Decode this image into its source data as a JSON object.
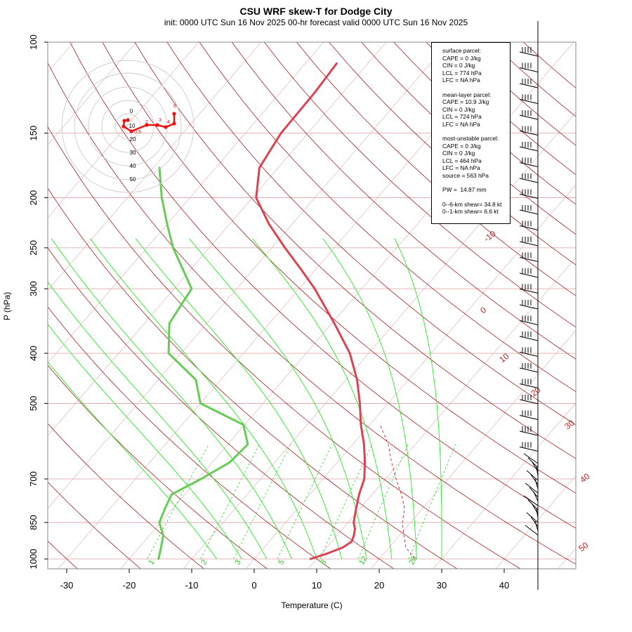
{
  "chart_data": {
    "type": "line",
    "title": "CSU WRF skew-T for Dodge City",
    "subtitle": "init: 0000 UTC Sun 16 Nov 2025     00-hr forecast valid 0000 UTC Sun 16 Nov 2025",
    "xlabel": "Temperature (C)",
    "ylabel": "P (hPa)",
    "x_ticks": [
      -30,
      -20,
      -10,
      0,
      10,
      20,
      30,
      40
    ],
    "p_ticks": [
      100,
      150,
      200,
      250,
      300,
      400,
      500,
      700,
      850,
      1000
    ],
    "isotherm_labels": [
      "-10",
      "0",
      "10",
      "20",
      "30",
      "40",
      "50"
    ],
    "mixing_ratio_labels": [
      "1",
      "2",
      "3",
      "5",
      "8",
      "12",
      "20"
    ],
    "series": [
      {
        "name": "temperature",
        "color": "#d94452",
        "points": [
          [
            1000,
            9
          ],
          [
            975,
            11
          ],
          [
            950,
            12.6
          ],
          [
            925,
            13.2
          ],
          [
            900,
            12.7
          ],
          [
            875,
            12
          ],
          [
            850,
            10.9
          ],
          [
            800,
            9.4
          ],
          [
            750,
            7.9
          ],
          [
            700,
            6.6
          ],
          [
            650,
            4.4
          ],
          [
            600,
            1.8
          ],
          [
            550,
            -1.4
          ],
          [
            500,
            -4.5
          ],
          [
            450,
            -8.2
          ],
          [
            400,
            -13
          ],
          [
            350,
            -19.6
          ],
          [
            300,
            -27.5
          ],
          [
            275,
            -32.4
          ],
          [
            250,
            -37.9
          ],
          [
            225,
            -43.7
          ],
          [
            200,
            -49.4
          ],
          [
            175,
            -53
          ],
          [
            150,
            -54.3
          ],
          [
            125,
            -54.5
          ],
          [
            110,
            -55
          ]
        ]
      },
      {
        "name": "dewpoint",
        "color": "#66cc55",
        "points": [
          [
            1000,
            -15.3
          ],
          [
            950,
            -16.5
          ],
          [
            900,
            -17.8
          ],
          [
            850,
            -20.2
          ],
          [
            800,
            -21.2
          ],
          [
            750,
            -22.1
          ],
          [
            700,
            -19.5
          ],
          [
            650,
            -17.2
          ],
          [
            600,
            -16.8
          ],
          [
            550,
            -20.2
          ],
          [
            500,
            -30
          ],
          [
            450,
            -34
          ],
          [
            400,
            -42
          ],
          [
            350,
            -46
          ],
          [
            300,
            -47.2
          ],
          [
            275,
            -51.3
          ],
          [
            250,
            -55.8
          ],
          [
            225,
            -60
          ],
          [
            200,
            -64.5
          ],
          [
            175,
            -69
          ]
        ]
      }
    ],
    "hodograph": {
      "ring_labels": [
        "0",
        "10",
        "20",
        "30",
        "40",
        "50"
      ],
      "height_labels": [
        "0.5",
        "1",
        "2",
        "3",
        "4",
        "6"
      ]
    }
  },
  "stats": [
    {
      "lines": [
        "surface parcel:",
        "CAPE = 0 J/kg",
        "CIN = 0 J/kg",
        "LCL = 774 hPa",
        "LFC = NA hPa"
      ]
    },
    {
      "lines": [
        "mean-layer parcel:",
        "CAPE = 10.9 J/kg",
        "CIN = 0 J/kg",
        "LCL = 724 hPa",
        "LFC = NA hPa"
      ]
    },
    {
      "lines": [
        "most-unstable parcel:",
        "CAPE = 0 J/kg",
        "CIN = 0 J/kg",
        "LCL = 464 hPa",
        "LFC = NA hPa",
        "source = 563 hPa"
      ]
    },
    {
      "lines": [
        "PW =  14.87 mm"
      ]
    },
    {
      "lines": [
        "0--6-km shear= 34.8 kt",
        "0--1-km shear= 6.6 kt"
      ]
    }
  ]
}
